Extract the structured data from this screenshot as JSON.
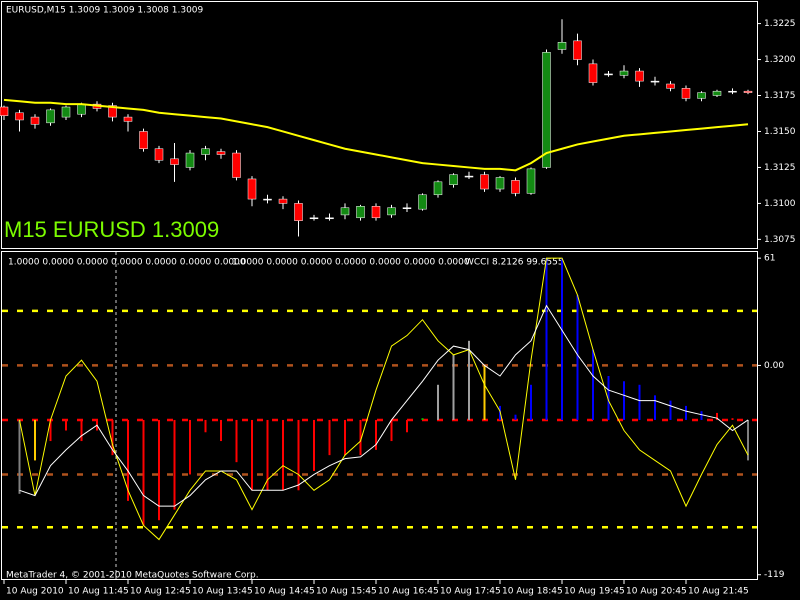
{
  "header": "EURUSD,M15  1.3009 1.3009 1.3008 1.3009",
  "footer": "MetaTrader 4, © 2001-2010 MetaQuotes Software Corp.",
  "x_labels": [
    "10 Aug 2010",
    "10 Aug 11:45",
    "10 Aug 12:45",
    "10 Aug 13:45",
    "10 Aug 14:45",
    "10 Aug 15:45",
    "10 Aug 16:45",
    "10 Aug 17:45",
    "10 Aug 18:45",
    "10 Aug 19:45",
    "10 Aug 20:45",
    "10 Aug 21:45"
  ],
  "chart_data": [
    {
      "type": "candlestick",
      "watermark": "M15 EURUSD 1.3009",
      "up_color": "#138a13",
      "down_color": "#ff0000",
      "doji_color": "#ffffff",
      "ylim": [
        1.3069,
        1.324
      ],
      "yticks": [
        1.3225,
        {
          "value": 1.32,
          "label": "1.3200"
        },
        1.3175,
        {
          "value": 1.315,
          "label": "1.3150"
        },
        1.3125,
        {
          "value": 1.31,
          "label": "1.3100"
        },
        1.3075
      ],
      "open": [
        1.3167,
        1.3163,
        1.316,
        1.3156,
        1.316,
        1.3162,
        1.3169,
        1.3168,
        1.316,
        1.315,
        1.3138,
        1.3131,
        1.3125,
        1.3134,
        1.3136,
        1.3135,
        1.3117,
        1.3103,
        1.3103,
        1.31,
        1.309,
        1.309,
        1.3092,
        1.309,
        1.3098,
        1.3092,
        1.3097,
        1.3096,
        1.3106,
        1.3113,
        1.3119,
        1.312,
        1.311,
        1.3116,
        1.3107,
        1.3125,
        1.3207,
        1.3213,
        1.3197,
        1.319,
        1.3189,
        1.3192,
        1.3185,
        1.3183,
        1.318,
        1.3173,
        1.3175,
        1.3178,
        1.3178
      ],
      "high": [
        1.3168,
        1.3165,
        1.3162,
        1.3166,
        1.3168,
        1.317,
        1.3171,
        1.317,
        1.3162,
        1.3152,
        1.314,
        1.3142,
        1.3137,
        1.314,
        1.3138,
        1.3137,
        1.3119,
        1.3106,
        1.3105,
        1.3102,
        1.3092,
        1.3093,
        1.31,
        1.3099,
        1.31,
        1.3099,
        1.31,
        1.3107,
        1.3116,
        1.3121,
        1.3122,
        1.3122,
        1.3119,
        1.3118,
        1.3125,
        1.3207,
        1.3228,
        1.3218,
        1.32,
        1.3192,
        1.3196,
        1.3194,
        1.3188,
        1.3185,
        1.3182,
        1.3178,
        1.3179,
        1.318,
        1.3179
      ],
      "low": [
        1.3158,
        1.315,
        1.3152,
        1.3154,
        1.3158,
        1.316,
        1.3164,
        1.3157,
        1.315,
        1.3136,
        1.3128,
        1.3115,
        1.3123,
        1.313,
        1.3131,
        1.3116,
        1.3098,
        1.31,
        1.3096,
        1.3077,
        1.3088,
        1.3088,
        1.3089,
        1.3088,
        1.3088,
        1.309,
        1.3094,
        1.3095,
        1.3104,
        1.3111,
        1.3117,
        1.3108,
        1.3108,
        1.3105,
        1.3106,
        1.3124,
        1.3204,
        1.3196,
        1.3182,
        1.3188,
        1.3187,
        1.3181,
        1.3182,
        1.3178,
        1.3171,
        1.3171,
        1.3174,
        1.3176,
        1.3176
      ],
      "close": [
        1.3161,
        1.3158,
        1.3155,
        1.3165,
        1.3167,
        1.3169,
        1.3166,
        1.316,
        1.3157,
        1.3138,
        1.313,
        1.3127,
        1.3135,
        1.3138,
        1.3134,
        1.3118,
        1.3103,
        1.3103,
        1.31,
        1.3088,
        1.309,
        1.309,
        1.3097,
        1.3098,
        1.309,
        1.3097,
        1.3097,
        1.3106,
        1.3115,
        1.312,
        1.3119,
        1.311,
        1.3118,
        1.3107,
        1.3124,
        1.3205,
        1.3212,
        1.32,
        1.3184,
        1.319,
        1.3192,
        1.3185,
        1.3185,
        1.318,
        1.3173,
        1.3177,
        1.3178,
        1.3178,
        1.3177
      ],
      "ma": {
        "color": "#ffff00",
        "values": [
          1.3172,
          1.3171,
          1.317,
          1.317,
          1.3169,
          1.3169,
          1.3168,
          1.3167,
          1.3166,
          1.3165,
          1.3163,
          1.3162,
          1.3161,
          1.316,
          1.3159,
          1.3157,
          1.3155,
          1.3153,
          1.315,
          1.3147,
          1.3144,
          1.3141,
          1.3138,
          1.3136,
          1.3134,
          1.3132,
          1.313,
          1.3128,
          1.3127,
          1.3126,
          1.3125,
          1.3124,
          1.3124,
          1.3123,
          1.3128,
          1.3135,
          1.3138,
          1.3141,
          1.3143,
          1.3145,
          1.3147,
          1.3148,
          1.3149,
          1.315,
          1.3151,
          1.3152,
          1.3153,
          1.3154,
          1.3155
        ]
      }
    },
    {
      "type": "indicator",
      "labels": [
        "1.0000 0.0000 0.0000 0.0000 0.0000 0.0000 0.0000",
        "1.0000 0.0000 0.0000 0.0000 0.0000 0.0000 0.0000",
        "WCCI 8.2126 99.6555"
      ],
      "ylim": [
        -122,
        64.5
      ],
      "yticks": [
        61,
        {
          "value": 0,
          "label": "0.00"
        },
        -119
      ],
      "levels": [
        {
          "value": 31,
          "color": "#ffff00"
        },
        {
          "value": 0,
          "color": "#b0521d"
        },
        {
          "value": -31,
          "color": "#ff0000"
        },
        {
          "value": -62,
          "color": "#b0521d"
        },
        {
          "value": -92,
          "color": "#ffff00"
        }
      ],
      "histogram": [
        null,
        -73,
        -54,
        -43,
        -37,
        -43,
        -37,
        -51,
        -77,
        -91,
        -88,
        -82,
        -62,
        -38,
        -43,
        -55,
        -71,
        -71,
        -71,
        -71,
        -60,
        -51,
        -51,
        -51,
        -48,
        -43,
        -38,
        -30,
        -11,
        6,
        14,
        0,
        -23,
        -28,
        -11,
        61,
        61,
        40,
        9,
        -6,
        -9,
        -11,
        -17,
        -20,
        -23,
        -26,
        -27,
        -30,
        -54
      ],
      "histogram_colors": [
        "#000000",
        "#808080",
        "#ffcc00",
        "#ff0000",
        "#ff0000",
        "#ff0000",
        "#ff0000",
        "#ff0000",
        "#ff0000",
        "#ff0000",
        "#ff0000",
        "#ff0000",
        "#ff0000",
        "#ff0000",
        "#ff0000",
        "#ff0000",
        "#ff0000",
        "#ff0000",
        "#ff0000",
        "#ff0000",
        "#ff0000",
        "#ff0000",
        "#ff0000",
        "#ff0000",
        "#ff0000",
        "#ff0000",
        "#ff0000",
        "#00cc00",
        "#a0a0a0",
        "#a0a0a0",
        "#a0a0a0",
        "#ffcc00",
        "#0000ff",
        "#0000ff",
        "#0000ff",
        "#0000ff",
        "#0000ff",
        "#0000ff",
        "#0000ff",
        "#0000ff",
        "#0000ff",
        "#0000ff",
        "#0000ff",
        "#0000ff",
        "#0000ff",
        "#0000ff",
        "#ff0000",
        "#ff0000",
        "#808080"
      ],
      "base": -31,
      "lines": [
        {
          "color": "#ffff00",
          "values": [
            null,
            -31,
            -74,
            -31,
            -6,
            3,
            -9,
            -45,
            -71,
            -91,
            -99,
            -85,
            -71,
            -60,
            -60,
            -65,
            -82,
            -65,
            -57,
            -62,
            -71,
            -65,
            -51,
            -43,
            -14,
            11,
            17,
            26,
            14,
            6,
            9,
            -11,
            -26,
            -65,
            3,
            61,
            61,
            40,
            9,
            -20,
            -37,
            -48,
            -54,
            -60,
            -80,
            -62,
            -45,
            -34,
            -51
          ]
        },
        {
          "color": "#ffffff",
          "values": [
            null,
            -71,
            -74,
            -57,
            -48,
            -40,
            -34,
            -48,
            -60,
            -74,
            -80,
            -80,
            -74,
            -65,
            -60,
            -60,
            -71,
            -71,
            -71,
            -68,
            -62,
            -57,
            -53,
            -52,
            -45,
            -31,
            -20,
            -9,
            3,
            11,
            9,
            0,
            -6,
            6,
            14,
            34,
            20,
            6,
            -6,
            -14,
            -17,
            -20,
            -20,
            -23,
            -26,
            -28,
            -30,
            -37,
            -31
          ]
        }
      ]
    }
  ]
}
